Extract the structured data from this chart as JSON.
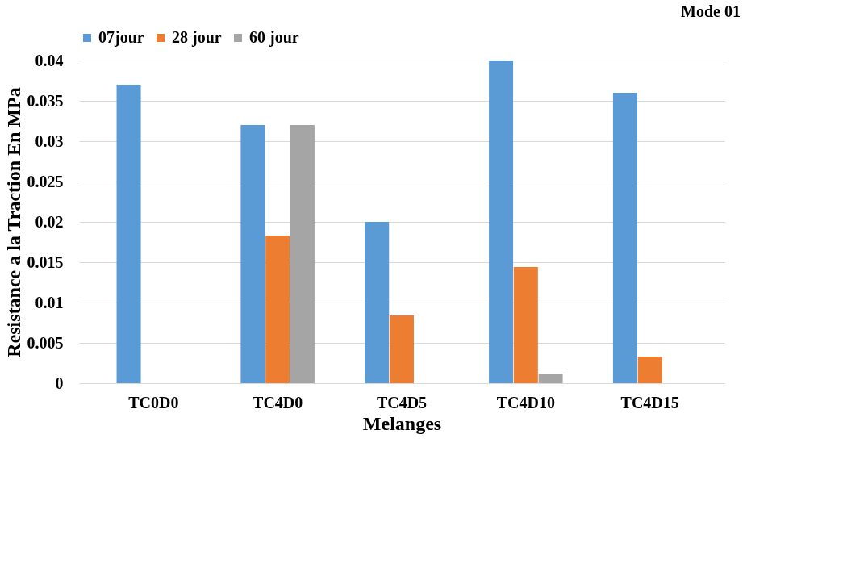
{
  "chart_data": {
    "type": "bar",
    "xlabel": "Melanges",
    "ylabel": "Resistance a la Traction En MPa",
    "categories": [
      "TC0D0",
      "TC4D0",
      "TC4D5",
      "TC4D10",
      "TC4D15"
    ],
    "series": [
      {
        "name": "07jour",
        "color": "#5b9bd5",
        "values": [
          0.037,
          0.032,
          0.02,
          0.04,
          0.036
        ]
      },
      {
        "name": "28 jour",
        "color": "#ed7d31",
        "values": [
          0,
          0.0183,
          0.0084,
          0.0144,
          0.0033
        ]
      },
      {
        "name": "60 jour",
        "color": "#a5a5a5",
        "values": [
          0,
          0.032,
          0,
          0.0012,
          0
        ]
      }
    ],
    "ylim": [
      0,
      0.04
    ],
    "yticks": [
      0,
      0.005,
      0.01,
      0.015,
      0.02,
      0.025,
      0.03,
      0.035,
      0.04
    ],
    "grid": "y",
    "legend": "top",
    "annotations": [
      "Mode 01"
    ]
  }
}
